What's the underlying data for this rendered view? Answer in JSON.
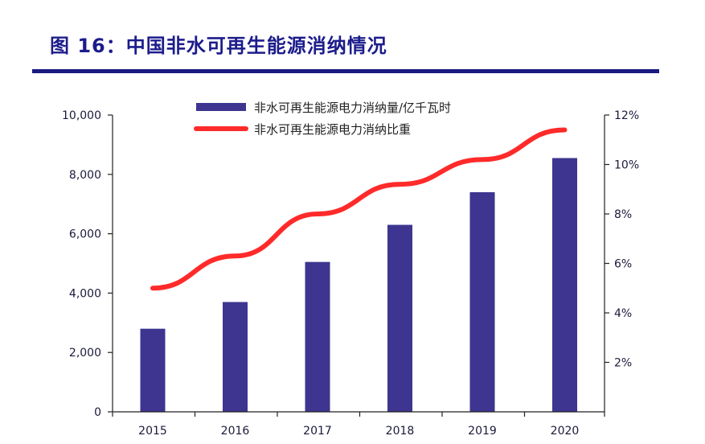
{
  "page": {
    "title": "图 16：中国非水可再生能源消纳情况"
  },
  "colors": {
    "title": "#1c1c8c",
    "rule": "#1a1a80",
    "bar": "#3d358f",
    "line": "#ff2a2a",
    "axis": "#222222"
  },
  "chart_data": {
    "type": "bar",
    "categories": [
      "2015",
      "2016",
      "2017",
      "2018",
      "2019",
      "2020"
    ],
    "series": [
      {
        "name": "非水可再生能源电力消纳量/亿千瓦时",
        "type": "bar",
        "axis": "left",
        "values": [
          2800,
          3700,
          5050,
          6300,
          7400,
          8550
        ]
      },
      {
        "name": "非水可再生能源电力消纳比重",
        "type": "line",
        "axis": "right",
        "values": [
          5.0,
          6.3,
          8.0,
          9.2,
          10.2,
          11.4
        ]
      }
    ],
    "ylim_left": [
      0,
      10000
    ],
    "yticks_left": [
      "0",
      "2,000",
      "4,000",
      "6,000",
      "8,000",
      "10,000"
    ],
    "ylim_right": [
      0,
      12
    ],
    "yticks_right": [
      "2%",
      "4%",
      "6%",
      "8%",
      "10%",
      "12%"
    ],
    "legend": "top",
    "grid": false
  }
}
